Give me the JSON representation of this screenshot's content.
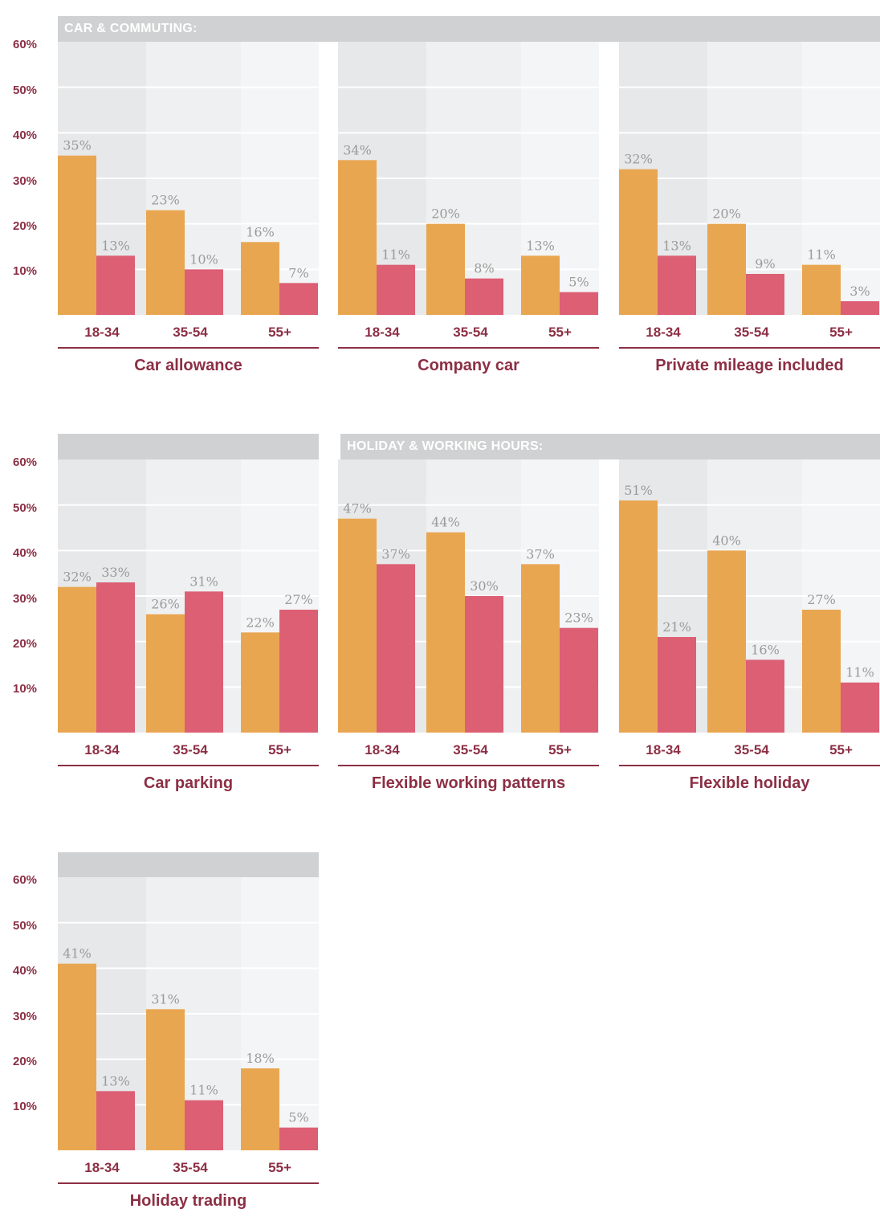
{
  "colors": {
    "accent_orange": "#e9a651",
    "accent_pink": "#dc5f74",
    "brand_maroon": "#8c2f44",
    "header_gray": "#d0d1d2",
    "value_label_gray": "#9a9a9a"
  },
  "sections": {
    "car_commuting": "CAR & COMMUTING:",
    "holiday_working_hours": "HOLIDAY & WORKING HOURS:"
  },
  "y_axis": {
    "ticks": [
      "60%",
      "50%",
      "40%",
      "30%",
      "20%",
      "10%"
    ]
  },
  "chart_data": [
    {
      "type": "bar",
      "title": "Car allowance",
      "categories": [
        "18-34",
        "35-54",
        "55+"
      ],
      "series": [
        {
          "name": "orange",
          "values": [
            35,
            23,
            16
          ]
        },
        {
          "name": "pink",
          "values": [
            13,
            10,
            7
          ]
        }
      ],
      "ylim": [
        0,
        60
      ],
      "ylabel": "",
      "xlabel": ""
    },
    {
      "type": "bar",
      "title": "Company car",
      "categories": [
        "18-34",
        "35-54",
        "55+"
      ],
      "series": [
        {
          "name": "orange",
          "values": [
            34,
            20,
            13
          ]
        },
        {
          "name": "pink",
          "values": [
            11,
            8,
            5
          ]
        }
      ],
      "ylim": [
        0,
        60
      ],
      "ylabel": "",
      "xlabel": ""
    },
    {
      "type": "bar",
      "title": "Private mileage included",
      "categories": [
        "18-34",
        "35-54",
        "55+"
      ],
      "series": [
        {
          "name": "orange",
          "values": [
            32,
            20,
            11
          ]
        },
        {
          "name": "pink",
          "values": [
            13,
            9,
            3
          ]
        }
      ],
      "ylim": [
        0,
        60
      ],
      "ylabel": "",
      "xlabel": ""
    },
    {
      "type": "bar",
      "title": "Car parking",
      "categories": [
        "18-34",
        "35-54",
        "55+"
      ],
      "series": [
        {
          "name": "orange",
          "values": [
            32,
            26,
            22
          ]
        },
        {
          "name": "pink",
          "values": [
            33,
            31,
            27
          ]
        }
      ],
      "ylim": [
        0,
        60
      ],
      "ylabel": "",
      "xlabel": ""
    },
    {
      "type": "bar",
      "title": "Flexible working patterns",
      "categories": [
        "18-34",
        "35-54",
        "55+"
      ],
      "series": [
        {
          "name": "orange",
          "values": [
            47,
            44,
            37
          ]
        },
        {
          "name": "pink",
          "values": [
            37,
            30,
            23
          ]
        }
      ],
      "ylim": [
        0,
        60
      ],
      "ylabel": "",
      "xlabel": ""
    },
    {
      "type": "bar",
      "title": "Flexible holiday",
      "categories": [
        "18-34",
        "35-54",
        "55+"
      ],
      "series": [
        {
          "name": "orange",
          "values": [
            51,
            40,
            27
          ]
        },
        {
          "name": "pink",
          "values": [
            21,
            16,
            11
          ]
        }
      ],
      "ylim": [
        0,
        60
      ],
      "ylabel": "",
      "xlabel": ""
    },
    {
      "type": "bar",
      "title": "Holiday trading",
      "categories": [
        "18-34",
        "35-54",
        "55+"
      ],
      "series": [
        {
          "name": "orange",
          "values": [
            41,
            31,
            18
          ]
        },
        {
          "name": "pink",
          "values": [
            13,
            11,
            5
          ]
        }
      ],
      "ylim": [
        0,
        60
      ],
      "ylabel": "",
      "xlabel": ""
    }
  ]
}
